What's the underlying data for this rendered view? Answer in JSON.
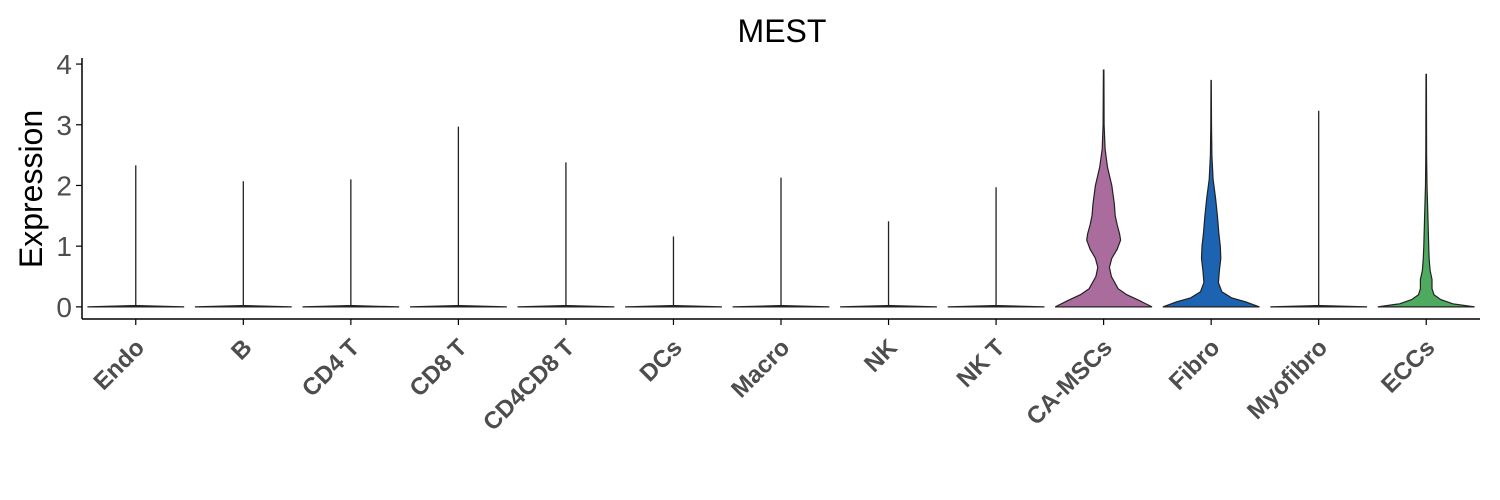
{
  "chart_data": {
    "type": "violin",
    "title": "MEST",
    "xlabel": "",
    "ylabel": "Expression",
    "ylim": [
      -0.2,
      4.1
    ],
    "yticks": [
      0,
      1,
      2,
      3,
      4
    ],
    "grid": false,
    "legend": "none",
    "categories": [
      "Endo",
      "B",
      "CD4 T",
      "CD8 T",
      "CD4CD8 T",
      "DCs",
      "Macro",
      "NK",
      "NK T",
      "CA-MSCs",
      "Fibro",
      "Myofibro",
      "ECCs"
    ],
    "max_values": [
      2.33,
      2.07,
      2.1,
      2.97,
      2.38,
      1.16,
      2.13,
      1.41,
      1.97,
      3.9,
      3.73,
      3.23,
      3.83
    ],
    "colors": [
      "#B5712C",
      "#E0B92F",
      "#C85A33",
      "#7D4D95",
      "#3E9A84",
      "#C24E5D",
      "#6E9ACB",
      "#A79B47",
      "#D47A8A",
      "#AA6C9C",
      "#1C63B2",
      "#7F7F7F",
      "#4EAA5E"
    ],
    "density": [
      {
        "y": [
          0,
          0.02
        ],
        "w": [
          1,
          0.05
        ]
      },
      {
        "y": [
          0,
          0.02
        ],
        "w": [
          1,
          0.05
        ]
      },
      {
        "y": [
          0,
          0.02
        ],
        "w": [
          1,
          0.05
        ]
      },
      {
        "y": [
          0,
          0.02
        ],
        "w": [
          1,
          0.05
        ]
      },
      {
        "y": [
          0,
          0.02
        ],
        "w": [
          1,
          0.05
        ]
      },
      {
        "y": [
          0,
          0.02
        ],
        "w": [
          1,
          0.05
        ]
      },
      {
        "y": [
          0,
          0.02
        ],
        "w": [
          1,
          0.05
        ]
      },
      {
        "y": [
          0,
          0.02
        ],
        "w": [
          1,
          0.05
        ]
      },
      {
        "y": [
          0,
          0.02
        ],
        "w": [
          1,
          0.05
        ]
      },
      {
        "y": [
          0,
          0.1,
          0.2,
          0.3,
          0.5,
          0.65,
          0.8,
          0.95,
          1.1,
          1.2,
          1.35,
          1.5,
          1.7,
          2.0,
          2.3,
          2.6,
          3.0,
          3.9
        ],
        "w": [
          1.0,
          0.75,
          0.48,
          0.3,
          0.16,
          0.12,
          0.17,
          0.28,
          0.35,
          0.33,
          0.28,
          0.24,
          0.22,
          0.17,
          0.08,
          0.03,
          0.01,
          0.005
        ]
      },
      {
        "y": [
          0,
          0.08,
          0.15,
          0.25,
          0.4,
          0.6,
          0.8,
          1.0,
          1.2,
          1.5,
          1.8,
          2.1,
          2.5,
          3.0,
          3.73
        ],
        "w": [
          1.0,
          0.72,
          0.42,
          0.22,
          0.15,
          0.17,
          0.2,
          0.19,
          0.16,
          0.13,
          0.09,
          0.04,
          0.015,
          0.007,
          0.004
        ]
      },
      {
        "y": [
          0,
          0.02
        ],
        "w": [
          1,
          0.05
        ]
      },
      {
        "y": [
          0,
          0.05,
          0.12,
          0.2,
          0.3,
          0.45,
          0.6,
          0.8,
          1.0,
          1.3,
          1.6,
          2.0,
          2.5,
          3.83
        ],
        "w": [
          1.0,
          0.55,
          0.3,
          0.16,
          0.12,
          0.12,
          0.08,
          0.06,
          0.05,
          0.04,
          0.03,
          0.015,
          0.008,
          0.004
        ]
      }
    ]
  }
}
